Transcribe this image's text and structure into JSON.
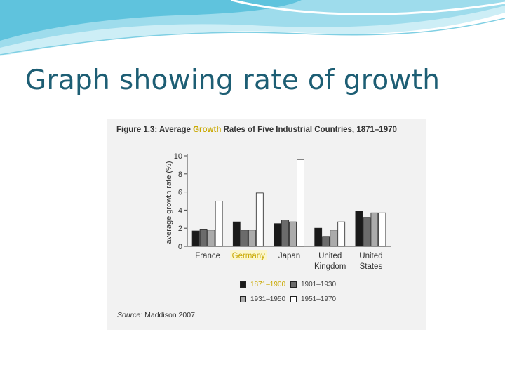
{
  "slide": {
    "title": "Graph showing rate of growth"
  },
  "figure": {
    "label": "Figure 1.3:",
    "title_before": "Average ",
    "title_highlight": "Growth",
    "title_after": " Rates of Five Industrial Countries, 1871–1970",
    "source_label": "Source:",
    "source_text": " Maddison 2007"
  },
  "chart_data": {
    "type": "bar",
    "categories": [
      "France",
      "Germany",
      "Japan",
      "United Kingdom",
      "United States"
    ],
    "category_lines": [
      [
        "France"
      ],
      [
        "Germany"
      ],
      [
        "Japan"
      ],
      [
        "United",
        "Kingdom"
      ],
      [
        "United",
        "States"
      ]
    ],
    "highlight_category": "Germany",
    "highlight_color": "#c9a800",
    "ylabel": "average growth rate (%)",
    "ylim": [
      0,
      10
    ],
    "yticks": [
      0,
      2,
      4,
      6,
      8,
      10
    ],
    "legend_position": "bottom",
    "series": [
      {
        "name": "1871–1900",
        "color": "#1a1a1a",
        "values": [
          1.7,
          2.7,
          2.5,
          2.0,
          3.9
        ]
      },
      {
        "name": "1901–1930",
        "color": "#6b6b6b",
        "values": [
          1.9,
          1.8,
          2.9,
          1.1,
          3.2
        ]
      },
      {
        "name": "1931–1950",
        "color": "#ababab",
        "values": [
          1.8,
          1.8,
          2.7,
          1.8,
          3.7
        ]
      },
      {
        "name": "1951–1970",
        "color": "#ffffff",
        "values": [
          5.0,
          5.9,
          9.6,
          2.7,
          3.7
        ]
      }
    ]
  }
}
